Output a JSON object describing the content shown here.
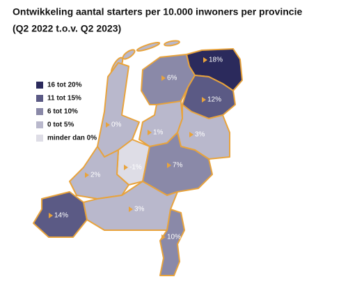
{
  "title": [
    "Ontwikkeling aantal starters per 10.000 inwoners per provincie",
    "(Q2 2022 t.o.v. Q2 2023)"
  ],
  "border_color": "#e8a33c",
  "label_color": "#ffffff",
  "legend": [
    {
      "label": "16 tot 20%",
      "color": "#2b2a5c"
    },
    {
      "label": "11 tot 15%",
      "color": "#5b5a85"
    },
    {
      "label": "6 tot 10%",
      "color": "#8a89a8"
    },
    {
      "label": "0 tot 5%",
      "color": "#b9b8cc"
    },
    {
      "label": "minder dan 0%",
      "color": "#dedde6"
    }
  ],
  "regions": [
    {
      "label": "18%",
      "color": "#2b2a5c"
    },
    {
      "label": "6%",
      "color": "#8a89a8"
    },
    {
      "label": "12%",
      "color": "#5b5a85"
    },
    {
      "label": "0%",
      "color": "#b9b8cc"
    },
    {
      "label": "1%",
      "color": "#b9b8cc"
    },
    {
      "label": "3%",
      "color": "#b9b8cc"
    },
    {
      "label": "-1%",
      "color": "#dedde6"
    },
    {
      "label": "7%",
      "color": "#8a89a8"
    },
    {
      "label": "2%",
      "color": "#b9b8cc"
    },
    {
      "label": "14%",
      "color": "#5b5a85"
    },
    {
      "label": "3%",
      "color": "#b9b8cc"
    },
    {
      "label": "10%",
      "color": "#8a89a8"
    }
  ]
}
